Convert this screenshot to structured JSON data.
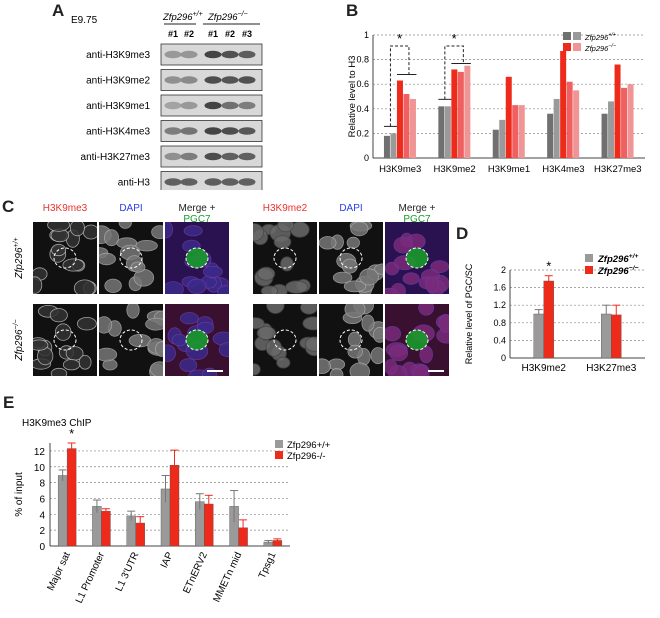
{
  "panels": {
    "A": "A",
    "B": "B",
    "C": "C",
    "D": "D",
    "E": "E"
  },
  "blot": {
    "stage": "E9.75",
    "genotypes": [
      "Zfp296+/+",
      "Zfp296-/-"
    ],
    "lanes": [
      "#1",
      "#2",
      "#1",
      "#2",
      "#3"
    ],
    "antibodies": [
      "anti-H3K9me3",
      "anti-H3K9me2",
      "anti-H3K9me1",
      "anti-H3K4me3",
      "anti-H3K27me3",
      "anti-H3"
    ],
    "band_intensity": [
      [
        0.4,
        0.42,
        0.85,
        0.78,
        0.72
      ],
      [
        0.45,
        0.48,
        0.8,
        0.76,
        0.78
      ],
      [
        0.35,
        0.4,
        0.85,
        0.62,
        0.55
      ],
      [
        0.55,
        0.6,
        0.85,
        0.8,
        0.75
      ],
      [
        0.45,
        0.55,
        0.8,
        0.7,
        0.7
      ],
      [
        0.7,
        0.7,
        0.72,
        0.7,
        0.7
      ]
    ]
  },
  "micro": {
    "left_cols": [
      "H3K9me3",
      "DAPI",
      "Merge + PGC7"
    ],
    "right_cols": [
      "H3K9me2",
      "DAPI",
      "Merge + PGC7"
    ],
    "rows": [
      "Zfp296+/+",
      "Zfp296-/-"
    ],
    "colors": {
      "red": "#e8322b",
      "blue": "#2b3de8",
      "green": "#1a9a2a"
    }
  },
  "chart_data": [
    {
      "id": "B",
      "type": "bar",
      "ylabel": "Relative level to H3",
      "ylim": [
        0,
        1
      ],
      "yticks": [
        "0",
        "0.2",
        "0.4",
        "0.6",
        "0.8",
        "1"
      ],
      "categories": [
        "H3K9me3",
        "H3K9me2",
        "H3K9me1",
        "H3K4me3",
        "H3K27me3"
      ],
      "legend": [
        "Zfp296+/+",
        "Zfp296-/-"
      ],
      "annotation": "*",
      "bars": [
        [
          0.18,
          0.2,
          0.63,
          0.52,
          0.48
        ],
        [
          0.42,
          0.42,
          0.72,
          0.7,
          0.75
        ],
        [
          0.23,
          0.31,
          0.66,
          0.43,
          0.43
        ],
        [
          0.36,
          0.48,
          0.87,
          0.62,
          0.55
        ],
        [
          0.36,
          0.46,
          0.76,
          0.57,
          0.6
        ]
      ]
    },
    {
      "id": "D",
      "type": "bar",
      "ylabel": "Relative level of PGC/SC",
      "ylim": [
        0,
        2
      ],
      "yticks": [
        "0",
        "0.4",
        "0.8",
        "1.2",
        "1.6",
        "2"
      ],
      "categories": [
        "H3K9me2",
        "H3K27me3"
      ],
      "annotation": "*",
      "series": [
        {
          "name": "Zfp296+/+",
          "values": [
            1.0,
            1.0
          ],
          "errors": [
            0.1,
            0.2
          ]
        },
        {
          "name": "Zfp296-/-",
          "values": [
            1.75,
            0.98
          ],
          "errors": [
            0.12,
            0.22
          ]
        }
      ]
    },
    {
      "id": "E",
      "type": "bar",
      "title": "H3K9me3 ChIP",
      "ylabel": "% of input",
      "ylim": [
        0,
        13
      ],
      "yticks": [
        "0",
        "2",
        "4",
        "6",
        "8",
        "10",
        "12"
      ],
      "categories": [
        "Major sat",
        "L1 Promoter",
        "L1 3'UTR",
        "IAP",
        "ETnERV2",
        "MMETn mid",
        "Tpsg1"
      ],
      "annotation": "*",
      "series": [
        {
          "name": "Zfp296+/+",
          "values": [
            8.9,
            5.0,
            3.8,
            7.2,
            5.6,
            5.0,
            0.5
          ],
          "errors": [
            0.7,
            0.8,
            0.6,
            1.7,
            1.0,
            2.0,
            0.2
          ]
        },
        {
          "name": "Zfp296-/-",
          "values": [
            12.3,
            4.4,
            2.9,
            10.2,
            5.3,
            2.3,
            0.7
          ],
          "errors": [
            0.7,
            0.3,
            0.8,
            1.9,
            1.1,
            1.0,
            0.2
          ]
        }
      ]
    }
  ],
  "colors": {
    "gray1": "#707070",
    "gray2": "#9a9a9a",
    "red": "#ee2a1b",
    "red2": "#f06060",
    "red3": "#f09595",
    "grid": "#888888"
  }
}
